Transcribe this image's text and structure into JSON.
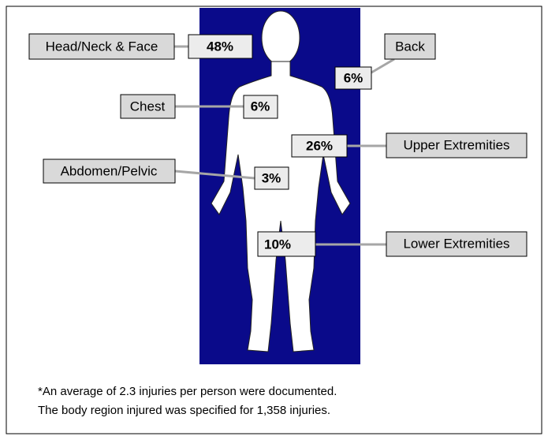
{
  "regions": [
    {
      "name": "Head/Neck & Face",
      "value": "48%"
    },
    {
      "name": "Back",
      "value": "6%"
    },
    {
      "name": "Chest",
      "value": "6%"
    },
    {
      "name": "Upper Extremities",
      "value": "26%"
    },
    {
      "name": "Abdomen/Pelvic",
      "value": "3%"
    },
    {
      "name": "Lower Extremities",
      "value": "10%"
    }
  ],
  "footnote": [
    "*An average of 2.3 injuries per person were documented.",
    "The body region injured was specified for 1,358 injuries."
  ]
}
